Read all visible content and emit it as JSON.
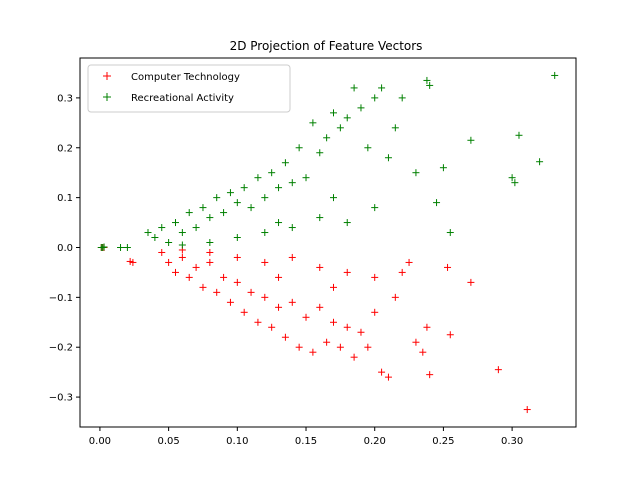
{
  "chart_data": {
    "type": "scatter",
    "title": "2D Projection of Feature Vectors",
    "xlabel": "",
    "ylabel": "",
    "xlim": [
      -0.0145,
      0.3465
    ],
    "ylim": [
      -0.36,
      0.38
    ],
    "xticks": [
      0.0,
      0.05,
      0.1,
      0.15,
      0.2,
      0.25,
      0.3
    ],
    "xtick_labels": [
      "0.00",
      "0.05",
      "0.10",
      "0.15",
      "0.20",
      "0.25",
      "0.30"
    ],
    "yticks": [
      -0.3,
      -0.2,
      -0.1,
      0.0,
      0.1,
      0.2,
      0.3
    ],
    "ytick_labels": [
      "−0.3",
      "−0.2",
      "−0.1",
      "0.0",
      "0.1",
      "0.2",
      "0.3"
    ],
    "grid": false,
    "legend_position": "upper-left",
    "series": [
      {
        "name": "Computer Technology",
        "color": "#ff0000",
        "marker": "+",
        "points": [
          [
            0.001,
            0.0
          ],
          [
            0.002,
            0.0
          ],
          [
            0.003,
            0.0
          ],
          [
            0.022,
            -0.028
          ],
          [
            0.024,
            -0.03
          ],
          [
            0.045,
            -0.01
          ],
          [
            0.05,
            -0.03
          ],
          [
            0.055,
            -0.05
          ],
          [
            0.06,
            -0.02
          ],
          [
            0.065,
            -0.06
          ],
          [
            0.07,
            -0.04
          ],
          [
            0.075,
            -0.08
          ],
          [
            0.08,
            -0.03
          ],
          [
            0.085,
            -0.09
          ],
          [
            0.09,
            -0.06
          ],
          [
            0.095,
            -0.11
          ],
          [
            0.1,
            -0.07
          ],
          [
            0.105,
            -0.13
          ],
          [
            0.11,
            -0.09
          ],
          [
            0.115,
            -0.15
          ],
          [
            0.12,
            -0.1
          ],
          [
            0.125,
            -0.16
          ],
          [
            0.13,
            -0.12
          ],
          [
            0.135,
            -0.18
          ],
          [
            0.14,
            -0.11
          ],
          [
            0.145,
            -0.2
          ],
          [
            0.15,
            -0.14
          ],
          [
            0.155,
            -0.21
          ],
          [
            0.16,
            -0.12
          ],
          [
            0.165,
            -0.19
          ],
          [
            0.17,
            -0.15
          ],
          [
            0.175,
            -0.2
          ],
          [
            0.18,
            -0.16
          ],
          [
            0.185,
            -0.22
          ],
          [
            0.19,
            -0.17
          ],
          [
            0.195,
            -0.2
          ],
          [
            0.2,
            -0.13
          ],
          [
            0.205,
            -0.25
          ],
          [
            0.21,
            -0.26
          ],
          [
            0.215,
            -0.1
          ],
          [
            0.22,
            -0.05
          ],
          [
            0.225,
            -0.03
          ],
          [
            0.23,
            -0.19
          ],
          [
            0.235,
            -0.21
          ],
          [
            0.238,
            -0.16
          ],
          [
            0.24,
            -0.255
          ],
          [
            0.255,
            -0.175
          ],
          [
            0.253,
            -0.04
          ],
          [
            0.27,
            -0.07
          ],
          [
            0.29,
            -0.245
          ],
          [
            0.311,
            -0.325
          ],
          [
            0.06,
            -0.005
          ],
          [
            0.08,
            -0.01
          ],
          [
            0.1,
            -0.02
          ],
          [
            0.12,
            -0.03
          ],
          [
            0.14,
            -0.02
          ],
          [
            0.16,
            -0.04
          ],
          [
            0.18,
            -0.05
          ],
          [
            0.2,
            -0.06
          ],
          [
            0.17,
            -0.08
          ],
          [
            0.13,
            -0.06
          ]
        ]
      },
      {
        "name": "Recreational Activity",
        "color": "#008000",
        "marker": "+",
        "points": [
          [
            0.001,
            0.0
          ],
          [
            0.002,
            0.0
          ],
          [
            0.003,
            0.001
          ],
          [
            0.015,
            0.0
          ],
          [
            0.02,
            0.0
          ],
          [
            0.035,
            0.03
          ],
          [
            0.04,
            0.02
          ],
          [
            0.045,
            0.04
          ],
          [
            0.05,
            0.01
          ],
          [
            0.055,
            0.05
          ],
          [
            0.06,
            0.03
          ],
          [
            0.065,
            0.07
          ],
          [
            0.07,
            0.04
          ],
          [
            0.075,
            0.08
          ],
          [
            0.08,
            0.06
          ],
          [
            0.085,
            0.1
          ],
          [
            0.09,
            0.07
          ],
          [
            0.095,
            0.11
          ],
          [
            0.1,
            0.09
          ],
          [
            0.105,
            0.12
          ],
          [
            0.11,
            0.08
          ],
          [
            0.115,
            0.14
          ],
          [
            0.12,
            0.1
          ],
          [
            0.125,
            0.15
          ],
          [
            0.13,
            0.12
          ],
          [
            0.135,
            0.17
          ],
          [
            0.14,
            0.13
          ],
          [
            0.145,
            0.2
          ],
          [
            0.15,
            0.14
          ],
          [
            0.155,
            0.25
          ],
          [
            0.16,
            0.19
          ],
          [
            0.165,
            0.22
          ],
          [
            0.17,
            0.27
          ],
          [
            0.175,
            0.24
          ],
          [
            0.18,
            0.26
          ],
          [
            0.185,
            0.32
          ],
          [
            0.19,
            0.28
          ],
          [
            0.195,
            0.2
          ],
          [
            0.2,
            0.3
          ],
          [
            0.205,
            0.32
          ],
          [
            0.21,
            0.18
          ],
          [
            0.215,
            0.24
          ],
          [
            0.22,
            0.3
          ],
          [
            0.23,
            0.15
          ],
          [
            0.238,
            0.335
          ],
          [
            0.24,
            0.325
          ],
          [
            0.245,
            0.09
          ],
          [
            0.25,
            0.16
          ],
          [
            0.255,
            0.03
          ],
          [
            0.27,
            0.215
          ],
          [
            0.3,
            0.14
          ],
          [
            0.302,
            0.13
          ],
          [
            0.305,
            0.225
          ],
          [
            0.32,
            0.172
          ],
          [
            0.331,
            0.345
          ],
          [
            0.06,
            0.005
          ],
          [
            0.08,
            0.01
          ],
          [
            0.1,
            0.02
          ],
          [
            0.12,
            0.03
          ],
          [
            0.14,
            0.04
          ],
          [
            0.16,
            0.06
          ],
          [
            0.18,
            0.05
          ],
          [
            0.2,
            0.08
          ],
          [
            0.17,
            0.1
          ],
          [
            0.13,
            0.05
          ]
        ]
      }
    ]
  }
}
